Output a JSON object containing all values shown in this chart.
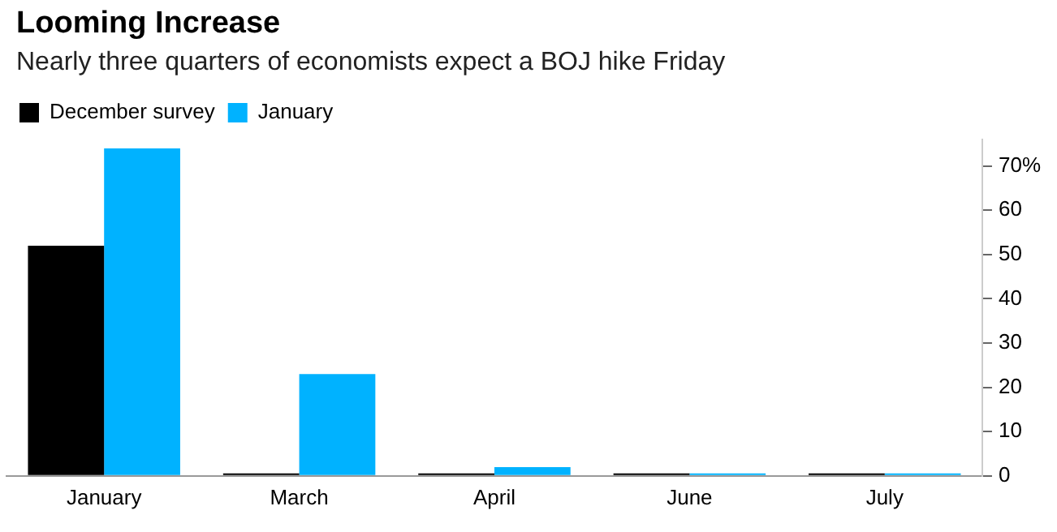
{
  "chart_data": {
    "type": "bar",
    "title": "Looming Increase",
    "subtitle": "Nearly three quarters of economists expect a BOJ hike Friday",
    "categories": [
      "January",
      "March",
      "April",
      "June",
      "July"
    ],
    "series": [
      {
        "name": "December survey",
        "color": "#000000",
        "values": [
          52,
          0,
          0,
          0,
          0
        ]
      },
      {
        "name": "January",
        "color": "#00b2ff",
        "values": [
          74,
          23,
          2,
          0,
          0
        ]
      }
    ],
    "ylim": [
      0,
      76
    ],
    "yticks": [
      0,
      10,
      20,
      30,
      40,
      50,
      60,
      {
        "value": 70,
        "label": "70%"
      }
    ],
    "grid": false,
    "legend": "top left"
  }
}
